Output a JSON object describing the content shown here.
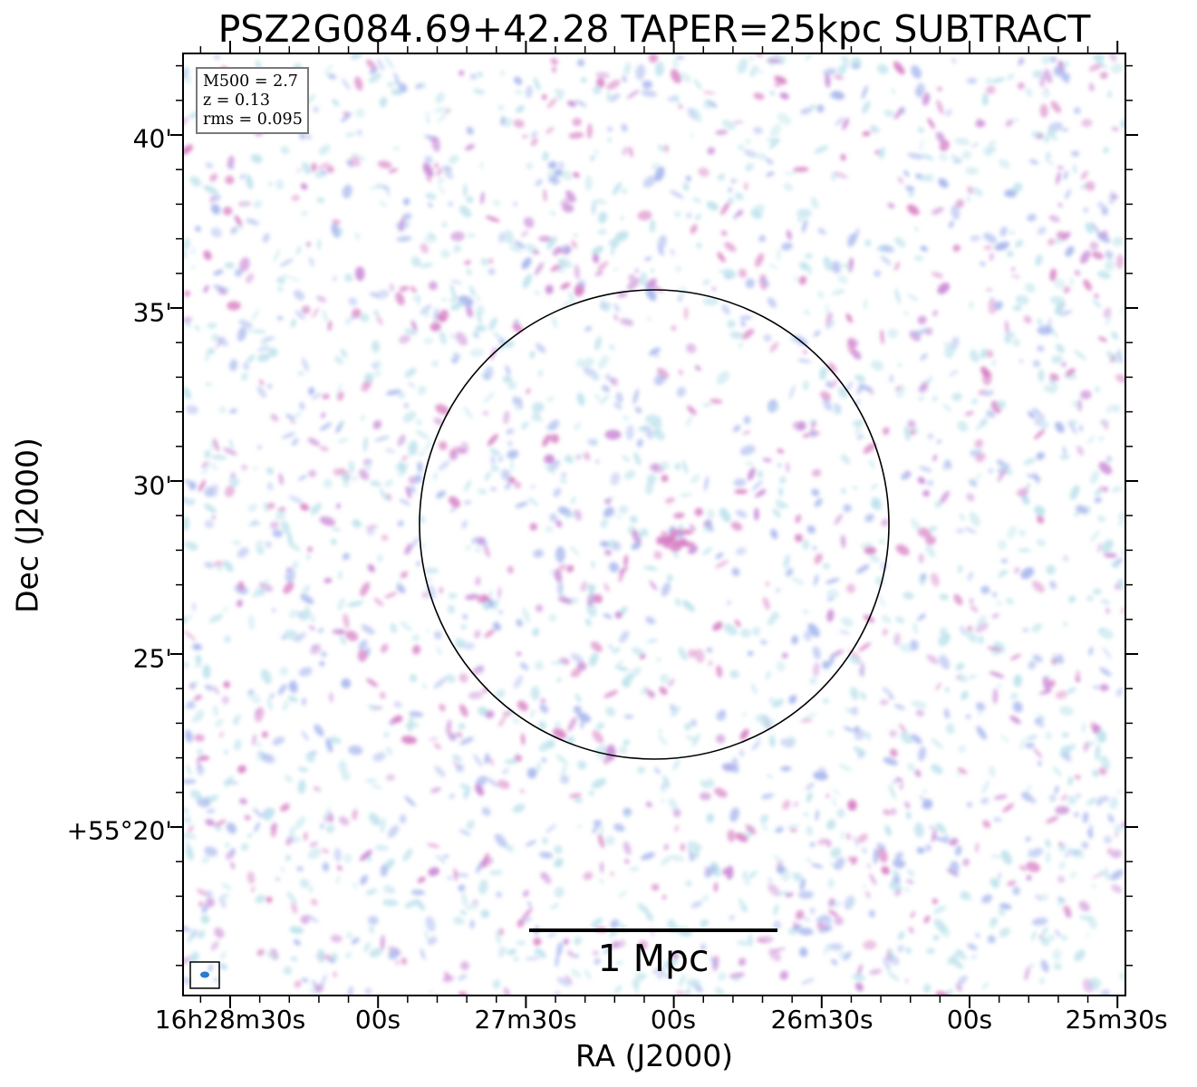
{
  "chart_data": {
    "type": "heatmap",
    "title": "PSZ2G084.69+42.28 TAPER=25kpc SUBTRACT",
    "xlabel": "RA (J2000)",
    "ylabel": "Dec (J2000)",
    "x_ticks": [
      "16h28m30s",
      "00s",
      "27m30s",
      "00s",
      "26m30s",
      "00s",
      "25m30s"
    ],
    "y_ticks": [
      "40'",
      "35'",
      "30'",
      "25'",
      "+55°20'"
    ],
    "grid": false,
    "colormap": "light noise map: pale cyan / light blue / violet / pink speckles on white",
    "colors": {
      "low": "#bfe3ec",
      "mid": "#a9b8ee",
      "high": "#c98bd6",
      "peak": "#d77fc4"
    },
    "annotations": {
      "info_box": [
        "M500 = 2.7",
        "z = 0.13",
        "rms = 0.095"
      ],
      "scale_bar_label": "1 Mpc",
      "circle": "R500 circle centred on the cluster",
      "beam": "restoring beam ellipse (bottom-left)"
    }
  }
}
